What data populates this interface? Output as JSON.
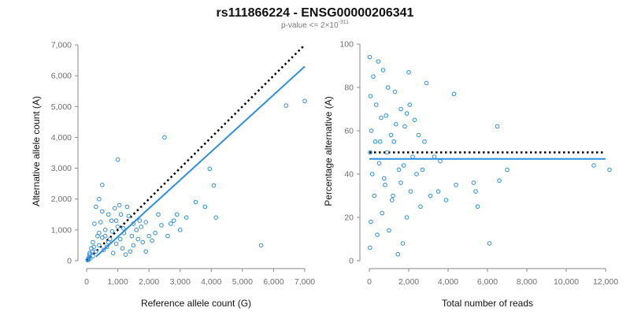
{
  "figure": {
    "title": "rs111866224 - ENSG00000206341",
    "subtitle": "p-value <= 2×10",
    "subtitle_exponent": "-311"
  },
  "colors": {
    "points": "#2b8fe0",
    "fit": "#2b8fe0",
    "reference": "#000000"
  },
  "chart_data": [
    {
      "type": "scatter",
      "name": "left-panel",
      "xlabel": "Reference allele count (G)",
      "ylabel": "Alternative allele count (A)",
      "xlim": [
        0,
        7000
      ],
      "ylim": [
        0,
        7000
      ],
      "xticks": [
        0,
        1000,
        2000,
        3000,
        4000,
        5000,
        6000,
        7000
      ],
      "xtick_labels": [
        "0",
        "1,000",
        "2,000",
        "3,000",
        "4,000",
        "5,000",
        "6,000",
        "7,000"
      ],
      "yticks": [
        0,
        1000,
        2000,
        3000,
        4000,
        5000,
        6000,
        7000
      ],
      "ytick_labels": [
        "0",
        "1,000",
        "2,000",
        "3,000",
        "4,000",
        "5,000",
        "6,000",
        "7,000"
      ],
      "reference_line": {
        "style": "dotted",
        "x": [
          0,
          7000
        ],
        "y": [
          0,
          7000
        ]
      },
      "fit_line": {
        "style": "solid",
        "x": [
          300,
          7000
        ],
        "y": [
          130,
          6300
        ]
      },
      "points": [
        [
          2500,
          4000
        ],
        [
          1000,
          3280
        ],
        [
          6400,
          5030
        ],
        [
          7000,
          5180
        ],
        [
          3950,
          2980
        ],
        [
          4080,
          2440
        ],
        [
          4150,
          1400
        ],
        [
          5600,
          500
        ],
        [
          3800,
          1750
        ],
        [
          3500,
          1900
        ],
        [
          2900,
          1500
        ],
        [
          2700,
          1200
        ],
        [
          3000,
          1000
        ],
        [
          2600,
          800
        ],
        [
          2200,
          900
        ],
        [
          2100,
          650
        ],
        [
          2000,
          800
        ],
        [
          1800,
          600
        ],
        [
          2300,
          1500
        ],
        [
          500,
          2460
        ],
        [
          400,
          2000
        ],
        [
          1700,
          1300
        ],
        [
          1600,
          1000
        ],
        [
          1500,
          1200
        ],
        [
          1350,
          1450
        ],
        [
          1200,
          900
        ],
        [
          1100,
          1500
        ],
        [
          1000,
          1100
        ],
        [
          900,
          1700
        ],
        [
          800,
          1300
        ],
        [
          700,
          1500
        ],
        [
          600,
          1000
        ],
        [
          500,
          1600
        ],
        [
          450,
          1250
        ],
        [
          300,
          1750
        ],
        [
          350,
          800
        ],
        [
          200,
          600
        ],
        [
          250,
          1200
        ],
        [
          150,
          400
        ],
        [
          100,
          250
        ],
        [
          80,
          120
        ],
        [
          50,
          60
        ],
        [
          1900,
          300
        ],
        [
          1400,
          300
        ],
        [
          1250,
          200
        ],
        [
          1150,
          400
        ],
        [
          950,
          550
        ],
        [
          850,
          250
        ],
        [
          750,
          700
        ],
        [
          650,
          450
        ],
        [
          550,
          350
        ],
        [
          400,
          500
        ],
        [
          300,
          300
        ],
        [
          200,
          150
        ],
        [
          120,
          80
        ],
        [
          60,
          30
        ],
        [
          1050,
          1800
        ],
        [
          1300,
          1750
        ],
        [
          1450,
          800
        ],
        [
          1650,
          700
        ],
        [
          2400,
          1150
        ],
        [
          2800,
          1300
        ],
        [
          3200,
          1400
        ],
        [
          1500,
          500
        ],
        [
          1750,
          1100
        ],
        [
          1900,
          1250
        ],
        [
          600,
          800
        ],
        [
          700,
          600
        ],
        [
          820,
          950
        ],
        [
          950,
          1300
        ],
        [
          1080,
          700
        ],
        [
          1180,
          1050
        ],
        [
          400,
          900
        ],
        [
          500,
          750
        ],
        [
          230,
          450
        ],
        [
          180,
          300
        ],
        [
          90,
          200
        ],
        [
          30,
          20
        ]
      ]
    },
    {
      "type": "scatter",
      "name": "right-panel",
      "xlabel": "Total number of reads",
      "ylabel": "Percentage alternative (A)",
      "xlim": [
        0,
        12000
      ],
      "ylim": [
        0,
        100
      ],
      "xticks": [
        0,
        2000,
        4000,
        6000,
        8000,
        10000,
        12000
      ],
      "xtick_labels": [
        "0",
        "2,000",
        "4,000",
        "6,000",
        "8,000",
        "10,000",
        "12,000"
      ],
      "yticks": [
        0,
        20,
        40,
        60,
        80,
        100
      ],
      "ytick_labels": [
        "0",
        "20",
        "40",
        "60",
        "80",
        "100"
      ],
      "reference_line": {
        "style": "dotted",
        "x": [
          0,
          12000
        ],
        "y": [
          50,
          50
        ]
      },
      "fit_line": {
        "style": "solid",
        "x": [
          0,
          12000
        ],
        "y": [
          47,
          47
        ]
      },
      "points": [
        [
          12200,
          42
        ],
        [
          11400,
          44
        ],
        [
          6500,
          62
        ],
        [
          7000,
          42
        ],
        [
          6600,
          37
        ],
        [
          6100,
          8
        ],
        [
          5500,
          25
        ],
        [
          5400,
          32
        ],
        [
          5300,
          36
        ],
        [
          4300,
          77
        ],
        [
          4400,
          35
        ],
        [
          3900,
          28
        ],
        [
          3600,
          46
        ],
        [
          3500,
          32
        ],
        [
          3100,
          30
        ],
        [
          2900,
          82
        ],
        [
          2800,
          55
        ],
        [
          2600,
          25
        ],
        [
          2400,
          40
        ],
        [
          2300,
          65
        ],
        [
          2200,
          48
        ],
        [
          2000,
          87
        ],
        [
          1900,
          20
        ],
        [
          1800,
          62
        ],
        [
          1700,
          8
        ],
        [
          1600,
          70
        ],
        [
          1500,
          42
        ],
        [
          1450,
          3
        ],
        [
          1300,
          78
        ],
        [
          1200,
          30
        ],
        [
          1100,
          58
        ],
        [
          1000,
          14
        ],
        [
          950,
          80
        ],
        [
          900,
          50
        ],
        [
          800,
          35
        ],
        [
          700,
          88
        ],
        [
          650,
          22
        ],
        [
          600,
          66
        ],
        [
          500,
          45
        ],
        [
          450,
          92
        ],
        [
          400,
          12
        ],
        [
          350,
          72
        ],
        [
          300,
          55
        ],
        [
          250,
          30
        ],
        [
          200,
          85
        ],
        [
          150,
          40
        ],
        [
          100,
          60
        ],
        [
          80,
          18
        ],
        [
          60,
          76
        ],
        [
          40,
          50
        ],
        [
          20,
          94
        ],
        [
          30,
          6
        ],
        [
          2100,
          32
        ],
        [
          2500,
          58
        ],
        [
          1750,
          44
        ],
        [
          1350,
          63
        ],
        [
          1150,
          28
        ],
        [
          850,
          67
        ],
        [
          750,
          38
        ],
        [
          550,
          55
        ],
        [
          1600,
          36
        ],
        [
          2700,
          42
        ],
        [
          3300,
          48
        ],
        [
          1900,
          68
        ],
        [
          2050,
          72
        ],
        [
          1250,
          55
        ]
      ]
    }
  ]
}
